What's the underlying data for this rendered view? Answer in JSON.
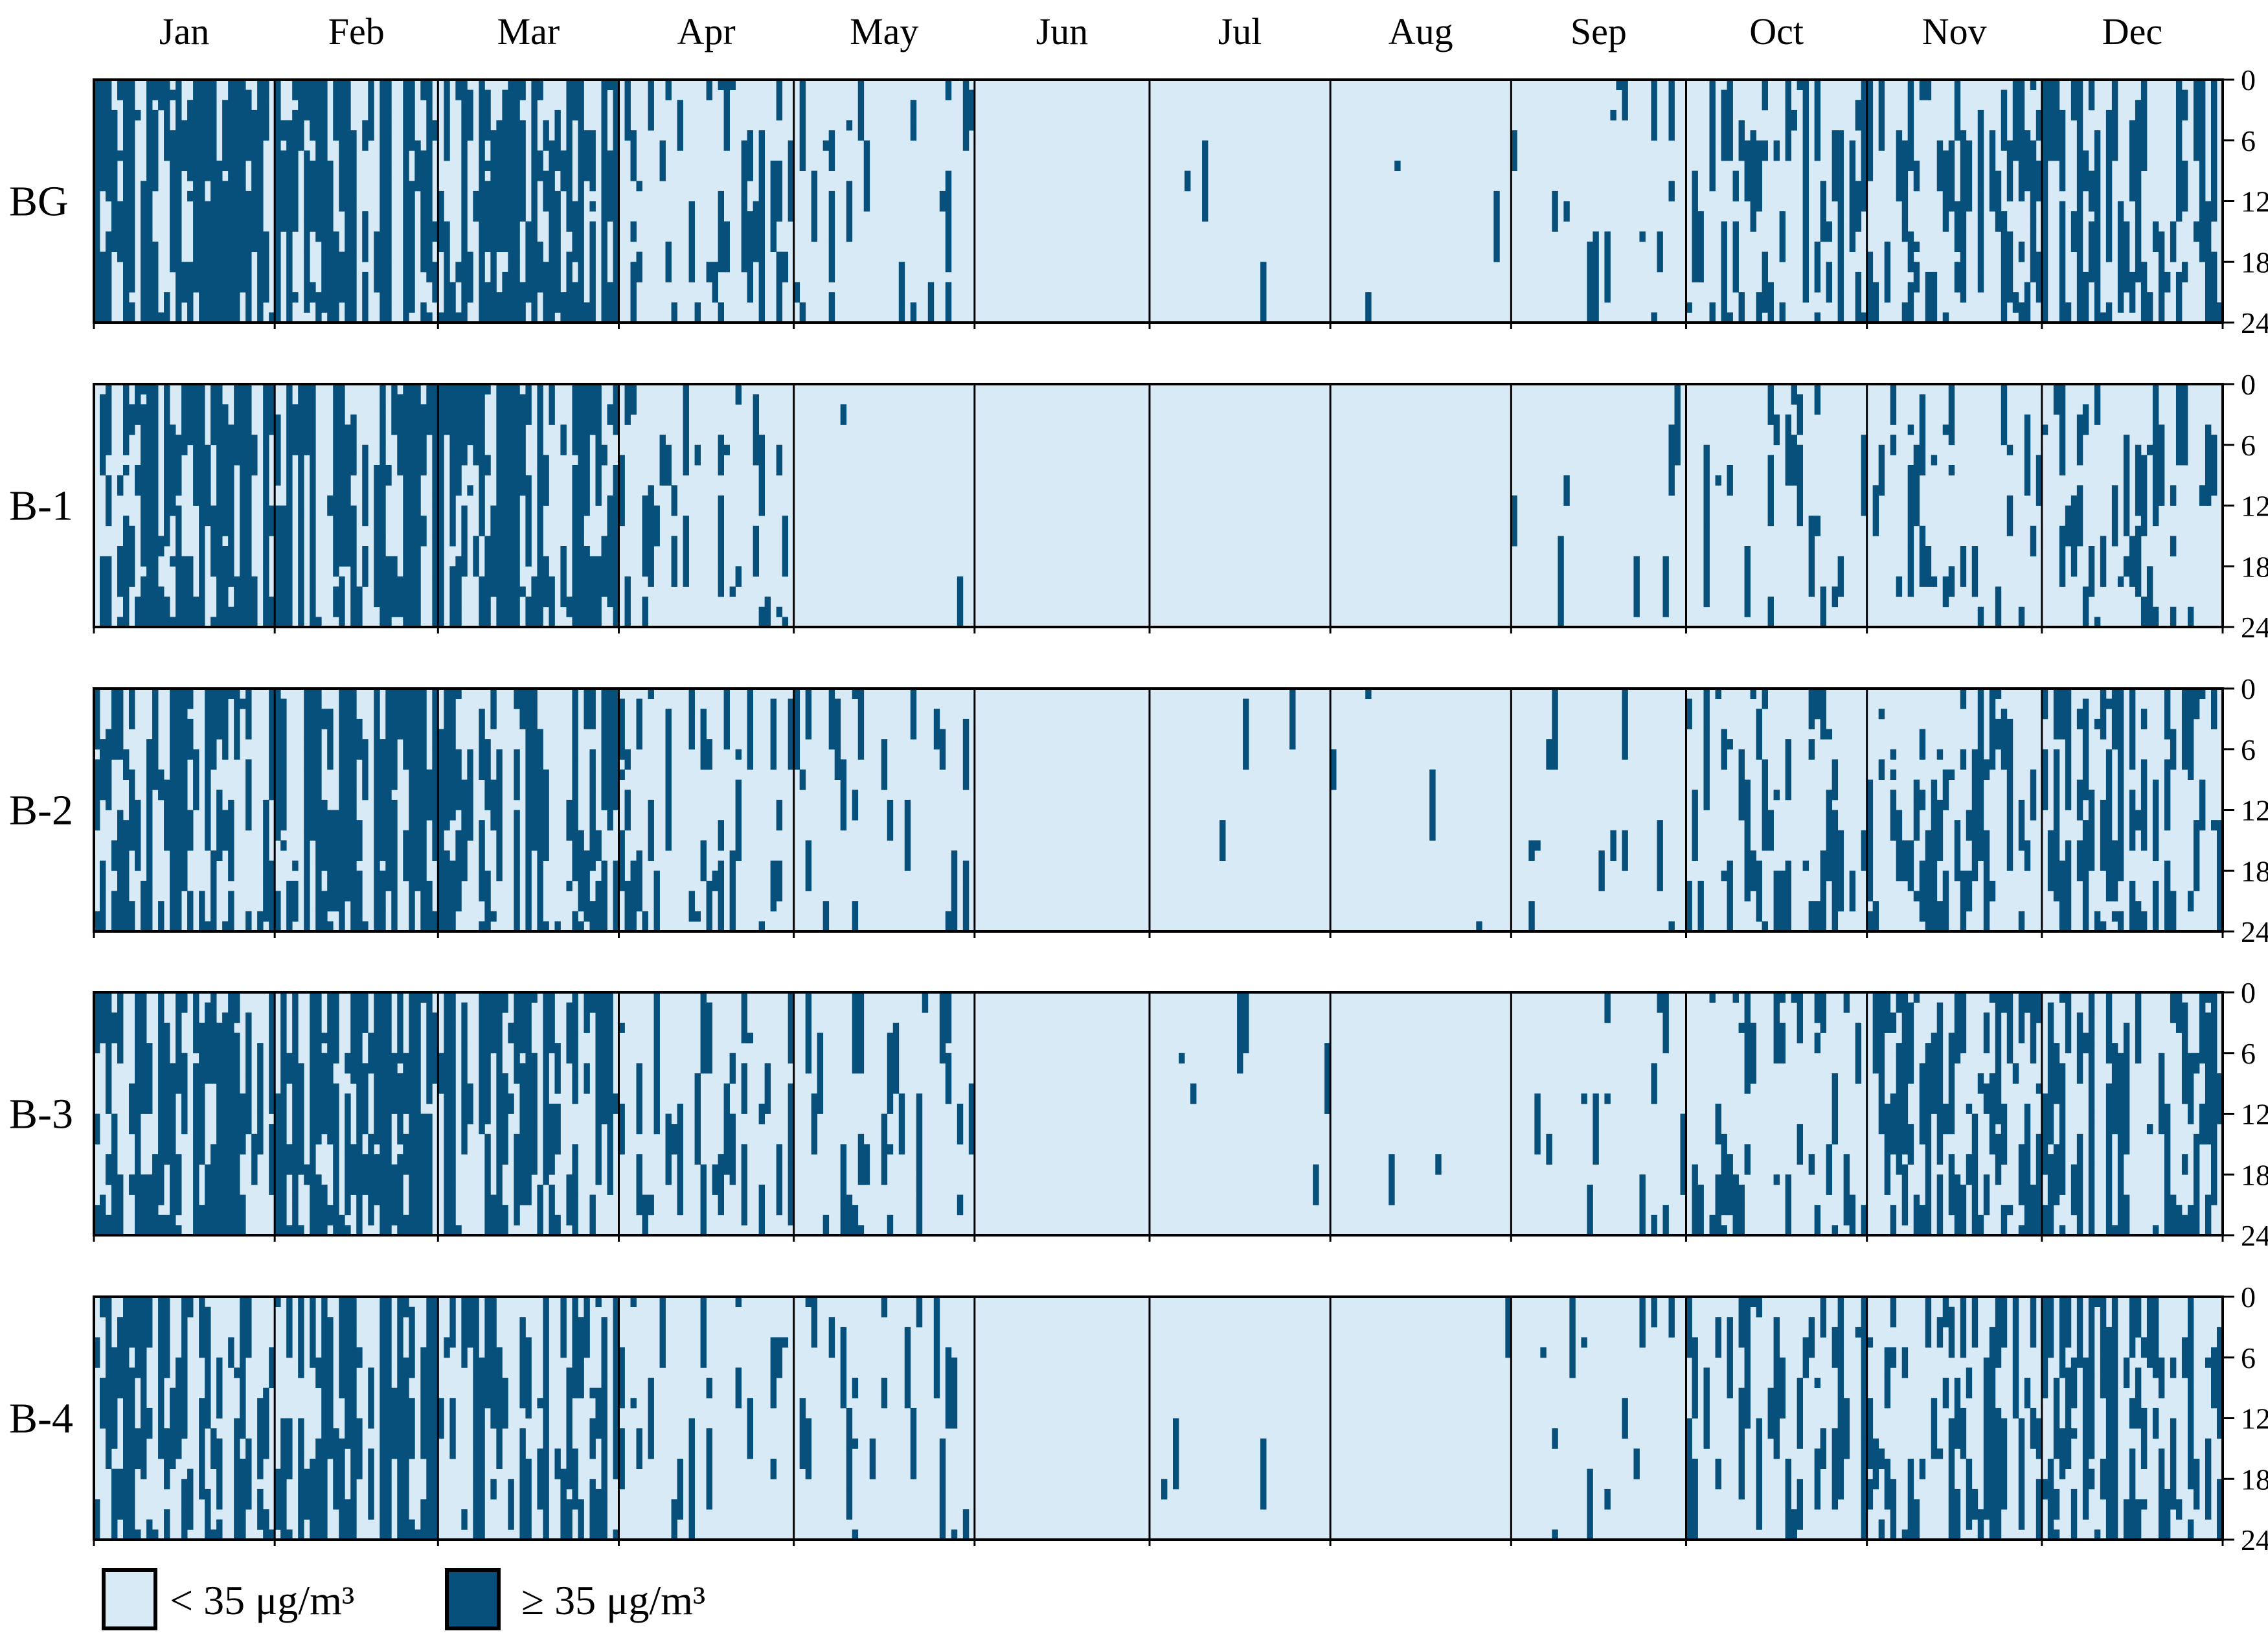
{
  "chart_data": {
    "type": "heatmap",
    "title": "",
    "x_categories": [
      "Jan",
      "Feb",
      "Mar",
      "Apr",
      "May",
      "Jun",
      "Jul",
      "Aug",
      "Sep",
      "Oct",
      "Nov",
      "Dec"
    ],
    "days_per_month": [
      31,
      28,
      31,
      30,
      31,
      30,
      31,
      31,
      30,
      31,
      30,
      31
    ],
    "y_axis_ticks": [
      "0",
      "6",
      "12",
      "18",
      "24"
    ],
    "y_range": [
      0,
      24
    ],
    "panels": [
      {
        "name": "BG",
        "monthly_exceedance_fraction": [
          0.55,
          0.6,
          0.55,
          0.22,
          0.14,
          0,
          0.015,
          0.01,
          0.08,
          0.25,
          0.35,
          0.4
        ]
      },
      {
        "name": "B-1",
        "monthly_exceedance_fraction": [
          0.6,
          0.65,
          0.6,
          0.15,
          0.02,
          0,
          0,
          0,
          0.04,
          0.09,
          0.12,
          0.2
        ]
      },
      {
        "name": "B-2",
        "monthly_exceedance_fraction": [
          0.52,
          0.58,
          0.55,
          0.18,
          0.12,
          0,
          0.015,
          0.01,
          0.07,
          0.22,
          0.3,
          0.35
        ]
      },
      {
        "name": "B-3",
        "monthly_exceedance_fraction": [
          0.52,
          0.58,
          0.55,
          0.18,
          0.13,
          0,
          0.015,
          0.01,
          0.08,
          0.24,
          0.32,
          0.37
        ]
      },
      {
        "name": "B-4",
        "monthly_exceedance_fraction": [
          0.5,
          0.55,
          0.52,
          0.15,
          0.08,
          0,
          0.015,
          0.01,
          0.06,
          0.22,
          0.3,
          0.35
        ]
      }
    ],
    "legend": [
      {
        "label": "< 35 μg/m³",
        "color": "#d9eaf7"
      },
      {
        "label": "≥ 35 μg/m³",
        "color": "#07507c"
      }
    ],
    "colors": {
      "low": "#d9eaf7",
      "high": "#07507c",
      "frame": "#000000"
    }
  }
}
